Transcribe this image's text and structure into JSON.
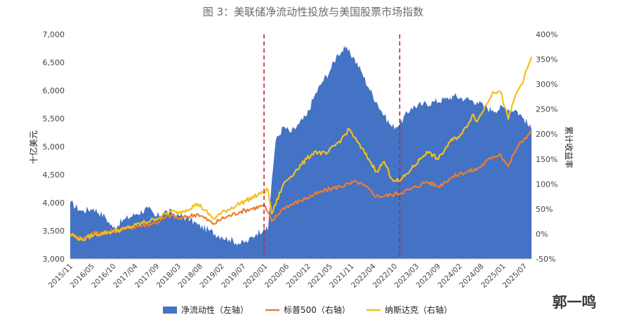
{
  "chart_data": {
    "type": "line",
    "title": "图 3：美联储净流动性投放与美国股票市场指数",
    "ylabel_left": "十亿美元",
    "ylabel_right": "累计收益率",
    "left_axis": {
      "min": 3000,
      "max": 7000,
      "ticks": [
        "3,000",
        "3,500",
        "4,000",
        "4,500",
        "5,000",
        "5,500",
        "6,000",
        "6,500",
        "7,000"
      ]
    },
    "right_axis": {
      "min": -50,
      "max": 400,
      "ticks": [
        "-50%",
        "0%",
        "50%",
        "100%",
        "150%",
        "200%",
        "250%",
        "300%",
        "350%",
        "400%"
      ]
    },
    "x_range": [
      "2015-11",
      "2025-10"
    ],
    "x_ticks": [
      "2015/11",
      "2016/05",
      "2016/10",
      "2017/04",
      "2017/09",
      "2018/03",
      "2018/08",
      "2019/02",
      "2019/07",
      "2020/01",
      "2020/06",
      "2020/12",
      "2021/05",
      "2021/11",
      "2022/04",
      "2022/10",
      "2023/03",
      "2023/09",
      "2024/02",
      "2024/08",
      "2025/01",
      "2025/07"
    ],
    "vlines": [
      "2020-01",
      "2022-12"
    ],
    "series": [
      {
        "name": "净流动性（左轴）",
        "axis": "left",
        "kind": "area",
        "color": "#4472c4",
        "points": [
          [
            "2015-11",
            4000
          ],
          [
            "2016-02",
            3850
          ],
          [
            "2016-05",
            3900
          ],
          [
            "2016-08",
            3750
          ],
          [
            "2016-10",
            3550
          ],
          [
            "2017-01",
            3700
          ],
          [
            "2017-04",
            3800
          ],
          [
            "2017-07",
            3900
          ],
          [
            "2017-09",
            3750
          ],
          [
            "2017-12",
            3850
          ],
          [
            "2018-03",
            3780
          ],
          [
            "2018-06",
            3700
          ],
          [
            "2018-08",
            3600
          ],
          [
            "2018-11",
            3500
          ],
          [
            "2019-02",
            3400
          ],
          [
            "2019-04",
            3350
          ],
          [
            "2019-07",
            3270
          ],
          [
            "2019-09",
            3320
          ],
          [
            "2019-11",
            3450
          ],
          [
            "2020-01",
            3550
          ],
          [
            "2020-02",
            3500
          ],
          [
            "2020-03",
            4400
          ],
          [
            "2020-04",
            5100
          ],
          [
            "2020-06",
            5350
          ],
          [
            "2020-08",
            5250
          ],
          [
            "2020-10",
            5400
          ],
          [
            "2020-12",
            5550
          ],
          [
            "2021-02",
            5900
          ],
          [
            "2021-04",
            6150
          ],
          [
            "2021-06",
            6350
          ],
          [
            "2021-08",
            6650
          ],
          [
            "2021-10",
            6750
          ],
          [
            "2021-12",
            6600
          ],
          [
            "2022-02",
            6350
          ],
          [
            "2022-04",
            6050
          ],
          [
            "2022-06",
            5800
          ],
          [
            "2022-08",
            5550
          ],
          [
            "2022-10",
            5350
          ],
          [
            "2022-12",
            5400
          ],
          [
            "2023-03",
            5700
          ],
          [
            "2023-06",
            5750
          ],
          [
            "2023-09",
            5800
          ],
          [
            "2023-12",
            5850
          ],
          [
            "2024-02",
            5900
          ],
          [
            "2024-05",
            5850
          ],
          [
            "2024-08",
            5800
          ],
          [
            "2024-10",
            5700
          ],
          [
            "2024-12",
            5650
          ],
          [
            "2025-03",
            5700
          ],
          [
            "2025-06",
            5650
          ],
          [
            "2025-08",
            5500
          ],
          [
            "2025-10",
            5300
          ]
        ]
      },
      {
        "name": "标普500（右轴）",
        "axis": "right",
        "kind": "line",
        "color": "#ed7d31",
        "points": [
          [
            "2015-11",
            0
          ],
          [
            "2016-02",
            -10
          ],
          [
            "2016-05",
            2
          ],
          [
            "2016-10",
            5
          ],
          [
            "2017-01",
            10
          ],
          [
            "2017-04",
            15
          ],
          [
            "2017-09",
            22
          ],
          [
            "2018-01",
            38
          ],
          [
            "2018-03",
            30
          ],
          [
            "2018-08",
            40
          ],
          [
            "2018-12",
            20
          ],
          [
            "2019-02",
            30
          ],
          [
            "2019-07",
            45
          ],
          [
            "2019-12",
            55
          ],
          [
            "2020-01",
            58
          ],
          [
            "2020-03",
            25
          ],
          [
            "2020-06",
            52
          ],
          [
            "2020-12",
            72
          ],
          [
            "2021-05",
            88
          ],
          [
            "2021-11,",
            100
          ],
          [
            "2022-01",
            105
          ],
          [
            "2022-04",
            90
          ],
          [
            "2022-06",
            75
          ],
          [
            "2022-10",
            78
          ],
          [
            "2023-03",
            90
          ],
          [
            "2023-07",
            105
          ],
          [
            "2023-10",
            95
          ],
          [
            "2024-01",
            112
          ],
          [
            "2024-04",
            122
          ],
          [
            "2024-08",
            130
          ],
          [
            "2024-12",
            155
          ],
          [
            "2025-02",
            160
          ],
          [
            "2025-04",
            135
          ],
          [
            "2025-06",
            170
          ],
          [
            "2025-08",
            190
          ],
          [
            "2025-10",
            205
          ]
        ]
      },
      {
        "name": "纳斯达克（右轴）",
        "axis": "right",
        "kind": "line",
        "color": "#f2c01e",
        "points": [
          [
            "2015-11",
            0
          ],
          [
            "2016-02",
            -12
          ],
          [
            "2016-05",
            -2
          ],
          [
            "2016-10",
            5
          ],
          [
            "2017-01",
            10
          ],
          [
            "2017-04",
            18
          ],
          [
            "2017-09",
            30
          ],
          [
            "2018-01",
            45
          ],
          [
            "2018-03",
            42
          ],
          [
            "2018-08",
            60
          ],
          [
            "2018-12",
            30
          ],
          [
            "2019-02",
            42
          ],
          [
            "2019-07",
            62
          ],
          [
            "2019-12",
            80
          ],
          [
            "2020-02",
            88
          ],
          [
            "2020-03",
            40
          ],
          [
            "2020-06",
            100
          ],
          [
            "2020-09",
            125
          ],
          [
            "2020-12",
            150
          ],
          [
            "2021-02",
            165
          ],
          [
            "2021-05",
            160
          ],
          [
            "2021-09",
            190
          ],
          [
            "2021-11",
            210
          ],
          [
            "2022-01",
            185
          ],
          [
            "2022-04",
            150
          ],
          [
            "2022-06",
            125
          ],
          [
            "2022-08",
            145
          ],
          [
            "2022-10",
            110
          ],
          [
            "2022-12",
            105
          ],
          [
            "2023-03",
            130
          ],
          [
            "2023-07",
            165
          ],
          [
            "2023-10",
            150
          ],
          [
            "2024-01",
            185
          ],
          [
            "2024-04",
            200
          ],
          [
            "2024-07",
            240
          ],
          [
            "2024-08",
            225
          ],
          [
            "2024-12",
            285
          ],
          [
            "2025-02",
            285
          ],
          [
            "2025-04",
            230
          ],
          [
            "2025-06",
            280
          ],
          [
            "2025-08",
            310
          ],
          [
            "2025-10",
            355
          ]
        ]
      }
    ]
  },
  "watermark": "郭一鸣"
}
